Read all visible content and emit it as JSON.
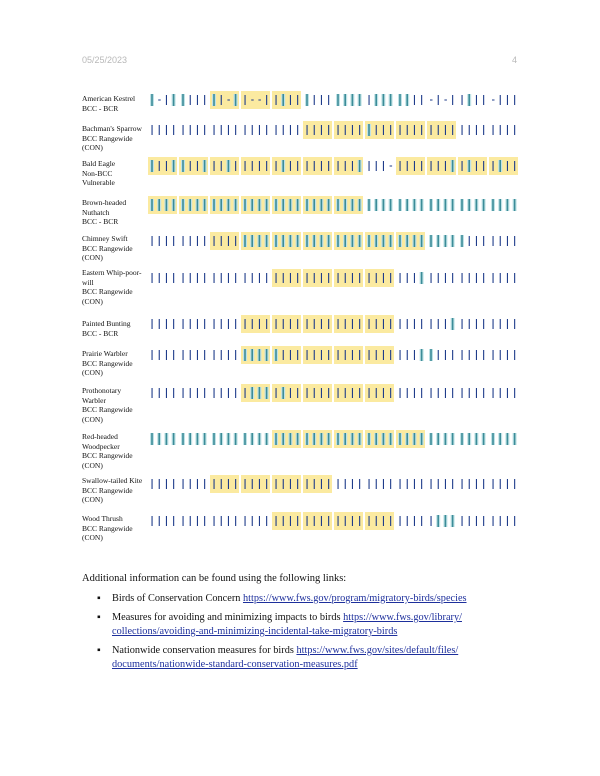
{
  "header": {
    "date": "05/25/2023",
    "page": "4"
  },
  "species": [
    {
      "lines": [
        "American Kestrel",
        "BCC - BCR"
      ],
      "shaded": [
        0,
        0,
        0,
        0,
        0,
        0,
        0,
        0,
        0,
        0,
        1,
        1,
        1,
        1,
        1,
        1,
        1,
        1,
        1,
        1,
        0,
        0,
        0,
        0,
        0,
        0,
        0,
        0,
        0,
        0,
        0,
        0,
        0,
        0,
        0,
        0,
        0,
        0,
        0,
        0,
        0,
        0,
        0,
        0,
        0,
        0,
        0,
        0
      ]
    },
    {
      "lines": [
        "Bachman's Sparrow",
        "BCC Rangewide",
        "(CON)"
      ],
      "shaded": [
        0,
        0,
        0,
        0,
        0,
        0,
        0,
        0,
        0,
        0,
        0,
        0,
        0,
        0,
        0,
        0,
        0,
        0,
        0,
        0,
        1,
        1,
        1,
        1,
        1,
        1,
        1,
        1,
        1,
        1,
        1,
        1,
        1,
        1,
        1,
        1,
        1,
        1,
        1,
        1,
        0,
        0,
        0,
        0,
        0,
        0,
        0,
        0
      ]
    },
    {
      "lines": [
        "Bald Eagle",
        "Non-BCC",
        "Vulnerable"
      ],
      "shaded": [
        1,
        1,
        1,
        1,
        1,
        1,
        1,
        1,
        1,
        1,
        1,
        1,
        1,
        1,
        1,
        1,
        1,
        1,
        1,
        1,
        1,
        1,
        1,
        1,
        1,
        1,
        1,
        1,
        0,
        0,
        0,
        0,
        1,
        1,
        1,
        1,
        1,
        1,
        1,
        1,
        1,
        1,
        1,
        1,
        1,
        1,
        1,
        1
      ]
    },
    {
      "lines": [
        "Brown-headed",
        "Nuthatch",
        "BCC - BCR"
      ],
      "shaded": [
        1,
        1,
        1,
        1,
        1,
        1,
        1,
        1,
        1,
        1,
        1,
        1,
        1,
        1,
        1,
        1,
        1,
        1,
        1,
        1,
        1,
        1,
        1,
        1,
        1,
        1,
        1,
        1,
        0,
        0,
        0,
        0,
        0,
        0,
        0,
        0,
        0,
        0,
        0,
        0,
        0,
        0,
        0,
        0,
        0,
        0,
        0,
        0
      ]
    },
    {
      "lines": [
        "Chimney Swift",
        "BCC Rangewide",
        "(CON)"
      ],
      "shaded": [
        0,
        0,
        0,
        0,
        0,
        0,
        0,
        0,
        0,
        0,
        0,
        1,
        1,
        1,
        1,
        1,
        1,
        1,
        1,
        1,
        1,
        1,
        1,
        1,
        1,
        1,
        1,
        1,
        1,
        1,
        1,
        1,
        1,
        1,
        1,
        1,
        0,
        0,
        0,
        0,
        0,
        0,
        0,
        0,
        0,
        0,
        0,
        0
      ]
    },
    {
      "lines": [
        "Eastern Whip-poor-",
        "will",
        "BCC Rangewide",
        "(CON)"
      ],
      "shaded": [
        0,
        0,
        0,
        0,
        0,
        0,
        0,
        0,
        0,
        0,
        0,
        0,
        0,
        0,
        0,
        0,
        1,
        1,
        1,
        1,
        1,
        1,
        1,
        1,
        1,
        1,
        1,
        1,
        1,
        1,
        1,
        1,
        0,
        0,
        0,
        0,
        0,
        0,
        0,
        0,
        0,
        0,
        0,
        0,
        0,
        0,
        0,
        0
      ]
    },
    {
      "lines": [
        "Painted Bunting",
        "BCC - BCR"
      ],
      "shaded": [
        0,
        0,
        0,
        0,
        0,
        0,
        0,
        0,
        0,
        0,
        0,
        0,
        0,
        0,
        0,
        1,
        1,
        1,
        1,
        1,
        1,
        1,
        1,
        1,
        1,
        1,
        1,
        1,
        1,
        1,
        1,
        1,
        0,
        0,
        0,
        0,
        0,
        0,
        0,
        0,
        0,
        0,
        0,
        0,
        0,
        0,
        0,
        0
      ]
    },
    {
      "lines": [
        "Prairie Warbler",
        "BCC Rangewide",
        "(CON)"
      ],
      "shaded": [
        0,
        0,
        0,
        0,
        0,
        0,
        0,
        0,
        0,
        0,
        0,
        0,
        0,
        0,
        1,
        1,
        1,
        1,
        1,
        1,
        1,
        1,
        1,
        1,
        1,
        1,
        1,
        1,
        1,
        1,
        1,
        1,
        0,
        0,
        0,
        0,
        0,
        0,
        0,
        0,
        0,
        0,
        0,
        0,
        0,
        0,
        0,
        0
      ]
    },
    {
      "lines": [
        "Prothonotary",
        "Warbler",
        "BCC Rangewide",
        "(CON)"
      ],
      "shaded": [
        0,
        0,
        0,
        0,
        0,
        0,
        0,
        0,
        0,
        0,
        0,
        0,
        0,
        1,
        1,
        1,
        1,
        1,
        1,
        1,
        1,
        1,
        1,
        1,
        1,
        1,
        1,
        1,
        1,
        1,
        1,
        0,
        0,
        0,
        0,
        0,
        0,
        0,
        0,
        0,
        0,
        0,
        0,
        0,
        0,
        0,
        0,
        0
      ]
    },
    {
      "lines": [
        "Red-headed",
        "Woodpecker",
        "BCC Rangewide",
        "(CON)"
      ],
      "shaded": [
        0,
        0,
        0,
        0,
        0,
        0,
        0,
        0,
        0,
        0,
        0,
        0,
        0,
        0,
        0,
        0,
        0,
        1,
        1,
        1,
        1,
        1,
        1,
        1,
        1,
        1,
        1,
        1,
        1,
        1,
        1,
        1,
        1,
        1,
        1,
        0,
        0,
        0,
        0,
        0,
        0,
        0,
        0,
        0,
        0,
        0,
        0,
        0
      ]
    },
    {
      "lines": [
        "Swallow-tailed Kite",
        "BCC Rangewide",
        "(CON)"
      ],
      "shaded": [
        0,
        0,
        0,
        0,
        0,
        0,
        0,
        0,
        0,
        1,
        1,
        1,
        1,
        1,
        1,
        1,
        1,
        1,
        1,
        1,
        1,
        1,
        1,
        1,
        0,
        0,
        0,
        0,
        0,
        0,
        0,
        0,
        0,
        0,
        0,
        0,
        0,
        0,
        0,
        0,
        0,
        0,
        0,
        0,
        0,
        0,
        0,
        0
      ]
    },
    {
      "lines": [
        "Wood Thrush",
        "BCC Rangewide",
        "(CON)"
      ],
      "shaded": [
        0,
        0,
        0,
        0,
        0,
        0,
        0,
        0,
        0,
        0,
        0,
        0,
        0,
        0,
        0,
        0,
        0,
        1,
        1,
        1,
        1,
        1,
        1,
        1,
        1,
        1,
        1,
        1,
        1,
        1,
        1,
        1,
        0,
        0,
        0,
        0,
        0,
        0,
        0,
        0,
        0,
        0,
        0,
        0,
        0,
        0,
        0,
        0
      ]
    }
  ],
  "bar_levels": [
    "2012211121021001121121112222122222110101121101111",
    "1111111111111111111111111111211111111111111111111",
    "2112211211211111121111111112111011111112121112111",
    "22222222222222222222222222222222222222222222222222",
    "11111111111122222222222222222222222222222111111111",
    "11111111111111111111111111111111111211111111111111",
    "11111111111111111111111111111111111111121111111111",
    "11111111111122222111111111111111111221111111111111",
    "11111111111112221211111111111111111111111111111111",
    "22222222222222222222222222222222222222222222222222",
    "11111111111111111111111111111111111111111111111111",
    "11111111111111111111111111111111111112221111111111"
  ],
  "info_text": "Additional information can be found using the following links:",
  "links": [
    {
      "label": "Birds of Conservation Concern ",
      "url_lines": [
        "https://www.fws.gov/program/migratory-birds/species"
      ]
    },
    {
      "label": "Measures for avoiding and minimizing impacts to birds ",
      "url_lines": [
        "https://www.fws.gov/library/",
        "collections/avoiding-and-minimizing-incidental-take-migratory-birds"
      ]
    },
    {
      "label": "Nationwide conservation measures for birds ",
      "url_lines": [
        "https://www.fws.gov/sites/default/files/",
        "documents/nationwide-standard-conservation-measures.pdf"
      ]
    }
  ],
  "bullet_char": "▪",
  "colors": {
    "shade": "#fbeaa0",
    "bar_dark": "#3c8c98",
    "bar_light": "#bfe2e6",
    "line": "#1f3c8a",
    "link": "#1d2f9c"
  }
}
